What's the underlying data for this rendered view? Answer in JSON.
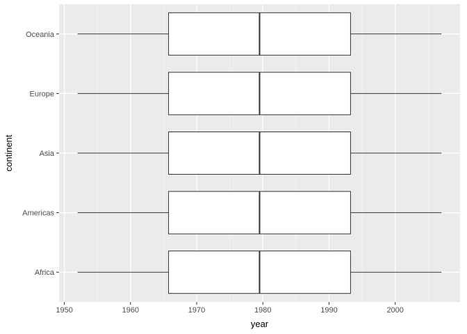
{
  "chart_data": {
    "type": "boxplot",
    "orientation": "horizontal",
    "xlabel": "year",
    "ylabel": "continent",
    "xlim": [
      1949.2,
      2009.8
    ],
    "x_ticks": [
      1950,
      1960,
      1970,
      1980,
      1990,
      2000
    ],
    "x_tick_labels": [
      "1950",
      "1960",
      "1970",
      "1980",
      "1990",
      "2000"
    ],
    "x_minor_ticks": [
      1955,
      1965,
      1975,
      1985,
      1995,
      2005
    ],
    "categories": [
      "Africa",
      "Americas",
      "Asia",
      "Europe",
      "Oceania"
    ],
    "boxes": [
      {
        "category": "Africa",
        "min": 1952,
        "q1": 1965.75,
        "median": 1979.5,
        "q3": 1993.25,
        "max": 2007
      },
      {
        "category": "Americas",
        "min": 1952,
        "q1": 1965.75,
        "median": 1979.5,
        "q3": 1993.25,
        "max": 2007
      },
      {
        "category": "Asia",
        "min": 1952,
        "q1": 1965.75,
        "median": 1979.5,
        "q3": 1993.25,
        "max": 2007
      },
      {
        "category": "Europe",
        "min": 1952,
        "q1": 1965.75,
        "median": 1979.5,
        "q3": 1993.25,
        "max": 2007
      },
      {
        "category": "Oceania",
        "min": 1952,
        "q1": 1965.75,
        "median": 1979.5,
        "q3": 1993.25,
        "max": 2007
      }
    ],
    "grid": true,
    "colors": {
      "panel_background": "#ebebeb",
      "grid_major": "#ffffff",
      "grid_minor": "#f4f4f4",
      "box_fill": "#ffffff",
      "box_stroke": "#333333",
      "tick_label": "#4d4d4d",
      "tick_mark": "#333333"
    }
  }
}
